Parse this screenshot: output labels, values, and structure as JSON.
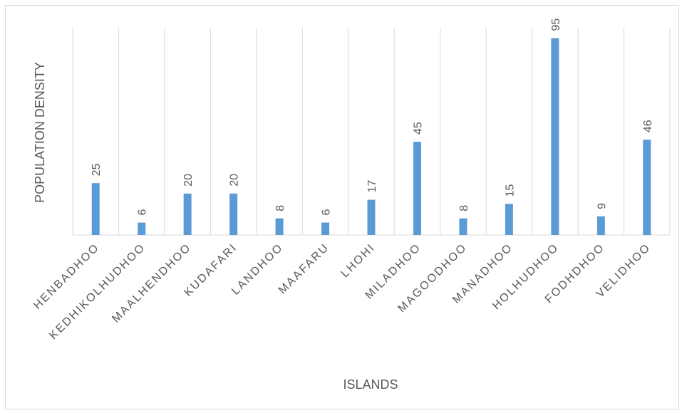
{
  "colors": {
    "bar": "#5b9bd5",
    "gridline": "#d9d9d9",
    "text": "#595959"
  },
  "chart_data": {
    "type": "bar",
    "title": "",
    "xlabel": "ISLANDS",
    "ylabel": "POPULATION DENSITY",
    "categories": [
      "HENBADHOO",
      "KEDHIKOLHUDHOO",
      "MAALHENDHOO",
      "KUDAFARI",
      "LANDHOO",
      "MAAFARU",
      "LHOHI",
      "MILADHOO",
      "MAGOODHOO",
      "MANADHOO",
      "HOLHUDHOO",
      "FODHDHOO",
      "VELIDHOO"
    ],
    "values": [
      25,
      6,
      20,
      20,
      8,
      6,
      17,
      45,
      8,
      15,
      95,
      9,
      46
    ],
    "ylim": [
      0,
      100
    ],
    "grid": "vertical",
    "legend": "none",
    "data_labels": true
  }
}
